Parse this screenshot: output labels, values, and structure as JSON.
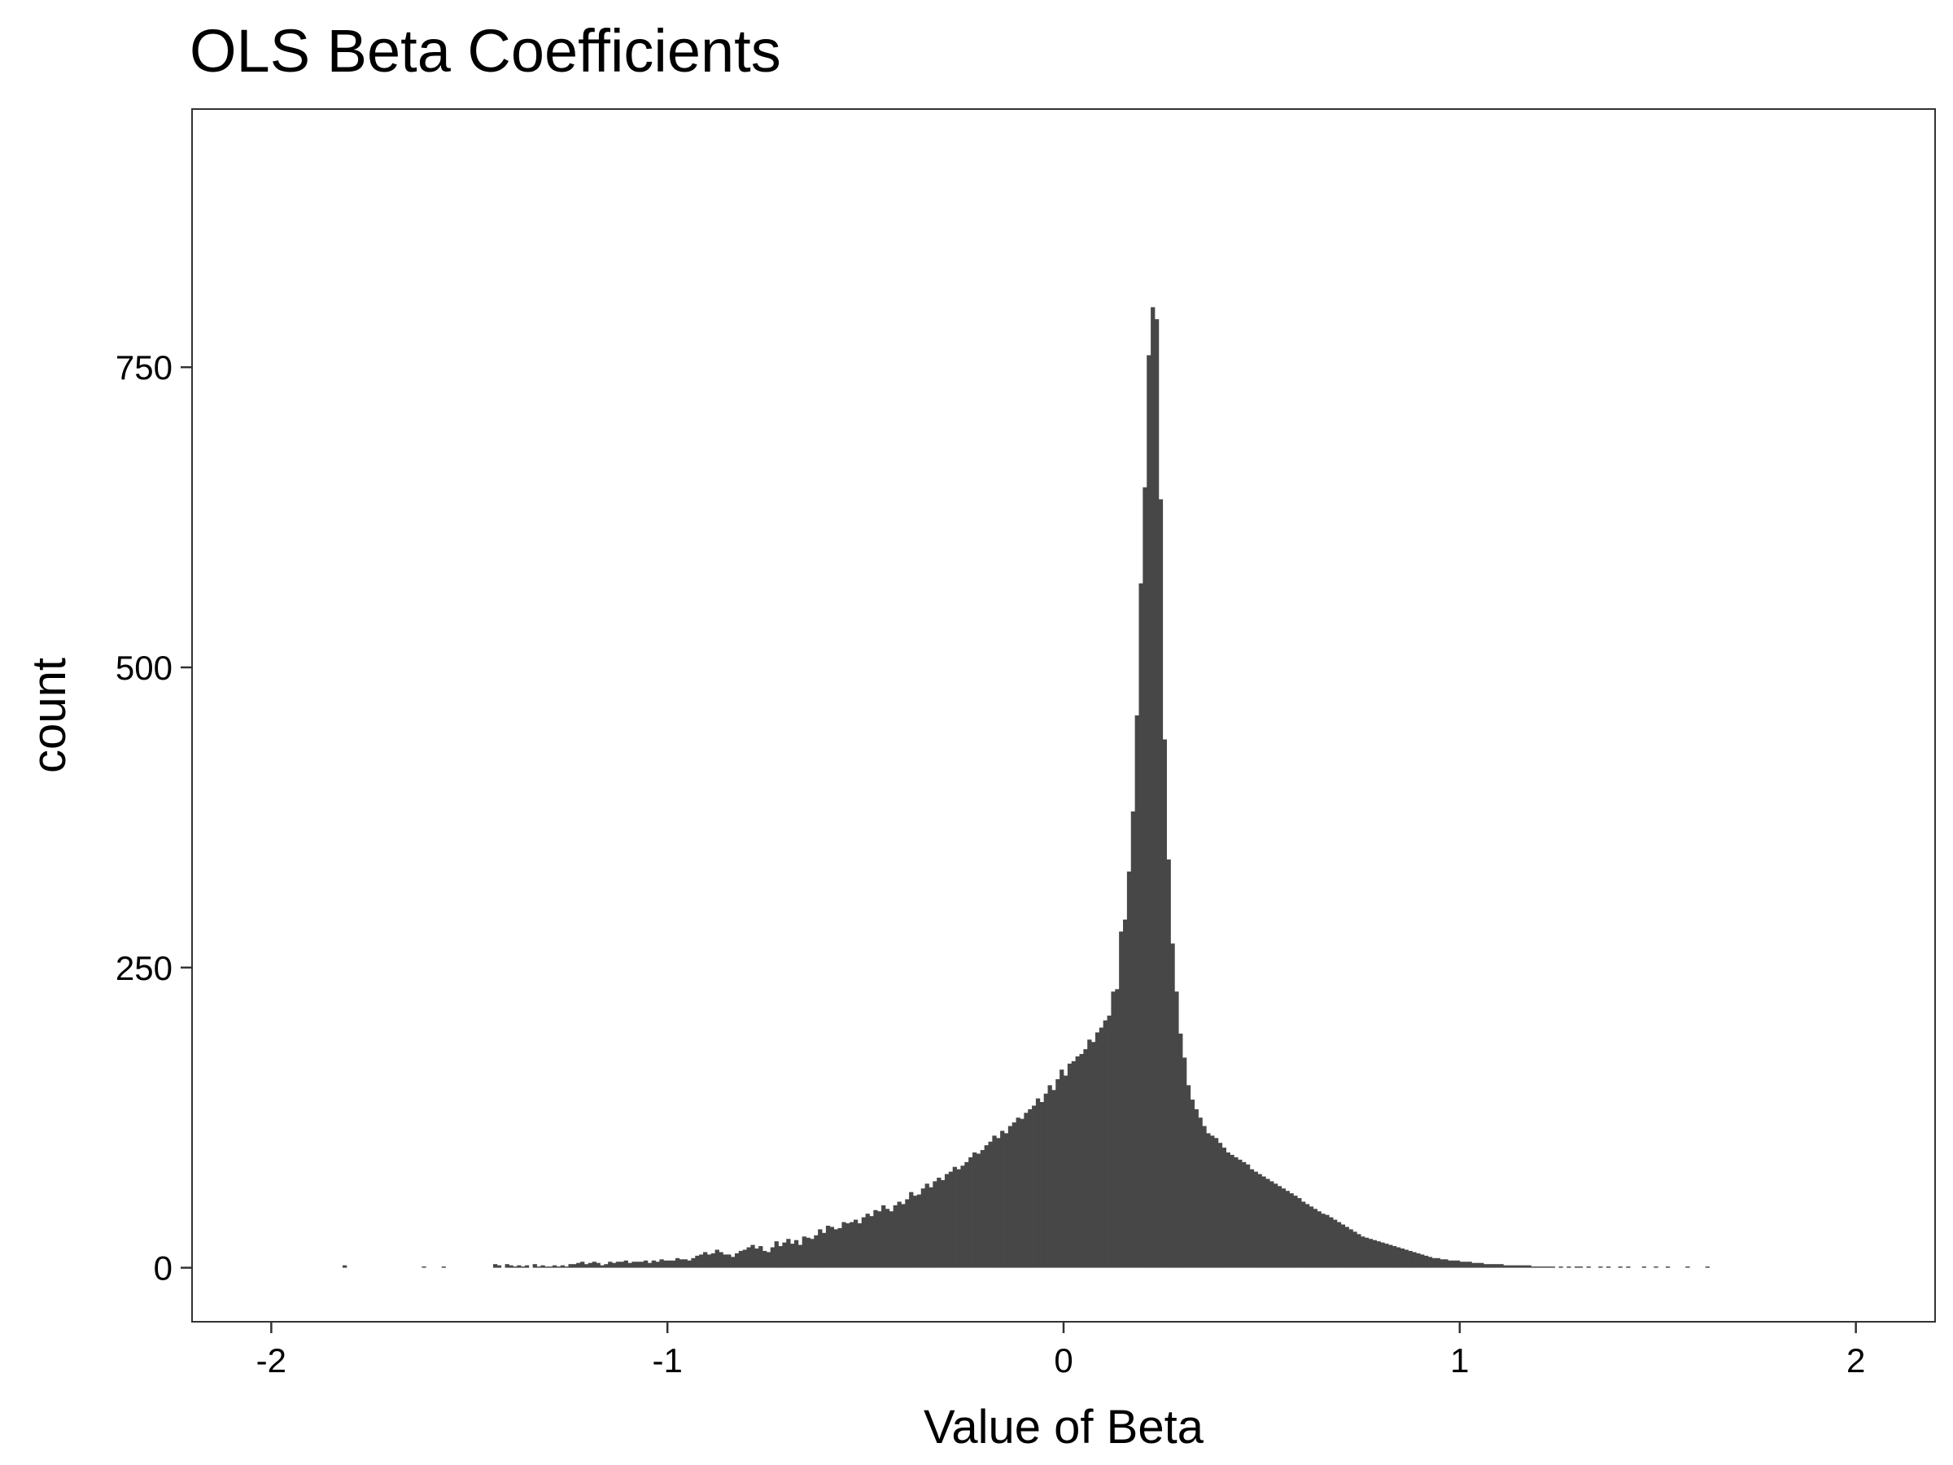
{
  "chart_data": {
    "type": "bar",
    "subtype": "histogram",
    "title": "OLS Beta Coefficients",
    "xlabel": "Value of Beta",
    "ylabel": "count",
    "xlim": [
      -2.2,
      2.2
    ],
    "ylim": [
      -45,
      965
    ],
    "x_ticks": [
      -2,
      -1,
      0,
      1,
      2
    ],
    "x_tick_labels": [
      "-2",
      "-1",
      "0",
      "1",
      "2"
    ],
    "y_ticks": [
      0,
      250,
      500,
      750
    ],
    "y_tick_labels": [
      "0",
      "250",
      "500",
      "750"
    ],
    "bar_color": "#474747",
    "bin_width": 0.01,
    "bin_start": -1.82,
    "values": [
      2,
      0,
      0,
      0,
      0,
      0,
      0,
      0,
      0,
      0,
      0,
      0,
      0,
      0,
      0,
      0,
      0,
      0,
      0,
      0,
      1,
      0,
      0,
      0,
      0,
      1,
      0,
      0,
      0,
      0,
      0,
      0,
      0,
      0,
      0,
      0,
      0,
      0,
      3,
      2,
      0,
      3,
      2,
      1,
      2,
      1,
      2,
      0,
      3,
      1,
      2,
      1,
      1,
      2,
      1,
      2,
      1,
      3,
      3,
      4,
      5,
      3,
      4,
      5,
      4,
      2,
      3,
      5,
      4,
      5,
      5,
      6,
      4,
      5,
      5,
      5,
      6,
      4,
      6,
      5,
      7,
      6,
      6,
      6,
      8,
      7,
      7,
      6,
      8,
      10,
      11,
      13,
      11,
      12,
      15,
      13,
      11,
      11,
      9,
      12,
      14,
      15,
      17,
      19,
      16,
      18,
      14,
      13,
      17,
      22,
      18,
      21,
      24,
      20,
      23,
      19,
      26,
      25,
      24,
      27,
      32,
      29,
      35,
      34,
      32,
      33,
      38,
      37,
      38,
      40,
      37,
      42,
      45,
      43,
      48,
      47,
      52,
      49,
      47,
      52,
      55,
      53,
      57,
      63,
      60,
      61,
      66,
      70,
      67,
      72,
      75,
      73,
      78,
      80,
      84,
      82,
      85,
      88,
      92,
      96,
      95,
      98,
      102,
      105,
      110,
      108,
      114,
      112,
      118,
      121,
      125,
      124,
      129,
      132,
      135,
      141,
      138,
      145,
      152,
      148,
      157,
      165,
      160,
      170,
      172,
      176,
      178,
      182,
      190,
      188,
      196,
      200,
      206,
      210,
      230,
      232,
      280,
      290,
      330,
      380,
      460,
      570,
      650,
      760,
      800,
      790,
      640,
      440,
      340,
      270,
      230,
      195,
      175,
      152,
      140,
      132,
      125,
      118,
      112,
      110,
      108,
      104,
      100,
      96,
      94,
      92,
      90,
      88,
      86,
      82,
      80,
      78,
      76,
      74,
      72,
      70,
      68,
      66,
      64,
      62,
      60,
      58,
      55,
      53,
      51,
      49,
      47,
      45,
      44,
      42,
      40,
      38,
      36,
      34,
      32,
      30,
      28,
      26,
      25,
      24,
      23,
      22,
      21,
      20,
      19,
      18,
      17,
      16,
      15,
      14,
      13,
      12,
      11,
      10,
      9,
      8,
      8,
      7,
      7,
      6,
      6,
      6,
      5,
      5,
      5,
      4,
      4,
      4,
      3,
      3,
      3,
      3,
      3,
      2,
      2,
      2,
      2,
      2,
      2,
      2,
      1,
      1,
      1,
      1,
      1,
      1,
      0,
      1,
      0,
      1,
      0,
      1,
      1,
      0,
      1,
      0,
      0,
      1,
      0,
      1,
      0,
      0,
      1,
      0,
      1,
      0,
      0,
      0,
      1,
      0,
      0,
      1,
      0,
      0,
      1,
      0,
      0,
      0,
      0,
      1,
      0,
      0,
      0,
      0,
      1
    ]
  }
}
